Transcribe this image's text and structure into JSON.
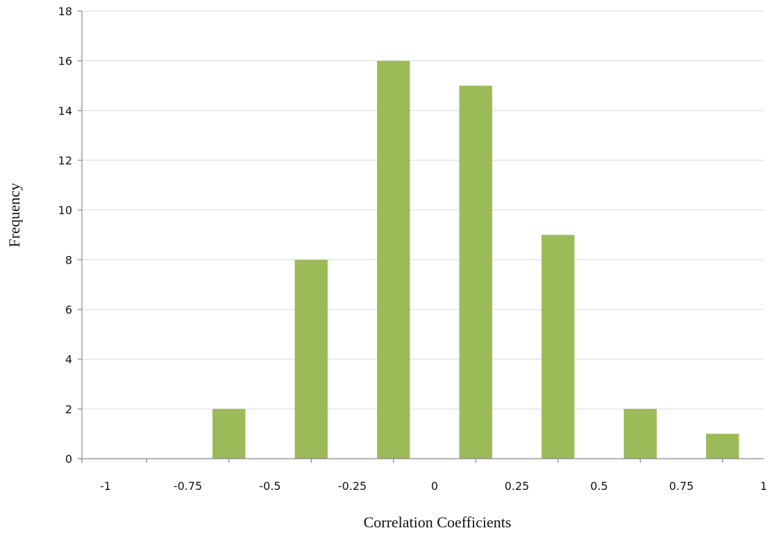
{
  "chart_data": {
    "type": "bar",
    "xlabel": "Correlation Coefficients",
    "ylabel": "Frequency",
    "x_ticks": [
      "-1",
      "-0.75",
      "-0.5",
      "-0.25",
      "0",
      "0.25",
      "0.5",
      "0.75",
      "1"
    ],
    "y_ticks": [
      "0",
      "2",
      "4",
      "6",
      "8",
      "10",
      "12",
      "14",
      "16",
      "18"
    ],
    "xlim": [
      -1,
      1
    ],
    "ylim": [
      0,
      18
    ],
    "bins": [
      {
        "x": -0.625,
        "value": 2
      },
      {
        "x": -0.375,
        "value": 8
      },
      {
        "x": -0.125,
        "value": 16
      },
      {
        "x": 0.125,
        "value": 15
      },
      {
        "x": 0.375,
        "value": 9
      },
      {
        "x": 0.625,
        "value": 2
      },
      {
        "x": 0.875,
        "value": 1
      }
    ],
    "bar_color": "#9bbb59",
    "grid": true,
    "legend": "none"
  }
}
